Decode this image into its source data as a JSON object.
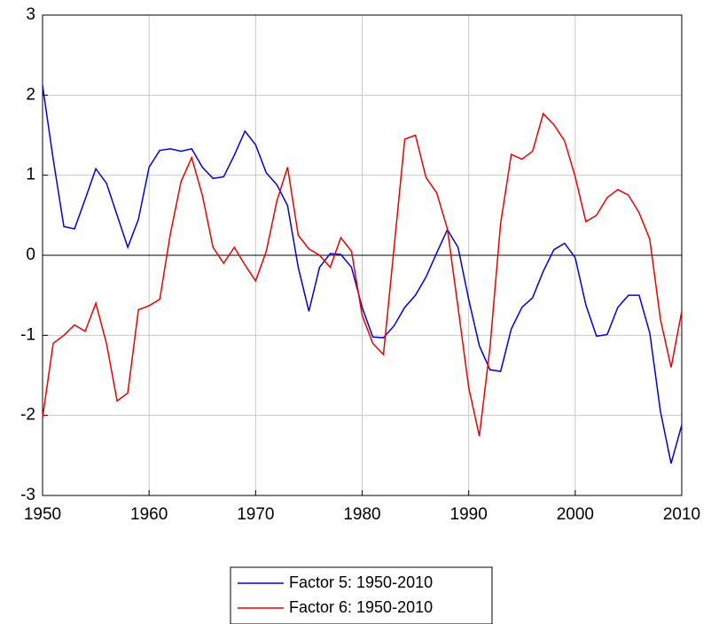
{
  "chart_data": {
    "type": "line",
    "x": [
      1950,
      1951,
      1952,
      1953,
      1954,
      1955,
      1956,
      1957,
      1958,
      1959,
      1960,
      1961,
      1962,
      1963,
      1964,
      1965,
      1966,
      1967,
      1968,
      1969,
      1970,
      1971,
      1972,
      1973,
      1974,
      1975,
      1976,
      1977,
      1978,
      1979,
      1980,
      1981,
      1982,
      1983,
      1984,
      1985,
      1986,
      1987,
      1988,
      1989,
      1990,
      1991,
      1992,
      1993,
      1994,
      1995,
      1996,
      1997,
      1998,
      1999,
      2000,
      2001,
      2002,
      2003,
      2004,
      2005,
      2006,
      2007,
      2008,
      2009,
      2010
    ],
    "series": [
      {
        "name": "Factor 5: 1950-2010",
        "color": "#0000dd",
        "values": [
          2.12,
          1.2,
          0.36,
          0.33,
          0.7,
          1.08,
          0.9,
          0.5,
          0.1,
          0.45,
          1.1,
          1.31,
          1.33,
          1.3,
          1.33,
          1.1,
          0.96,
          0.98,
          1.25,
          1.55,
          1.38,
          1.03,
          0.88,
          0.62,
          -0.15,
          -0.7,
          -0.15,
          0.02,
          0.01,
          -0.15,
          -0.65,
          -1.02,
          -1.03,
          -0.88,
          -0.65,
          -0.5,
          -0.27,
          0.03,
          0.32,
          0.1,
          -0.55,
          -1.13,
          -1.43,
          -1.45,
          -0.92,
          -0.65,
          -0.53,
          -0.2,
          0.07,
          0.15,
          -0.03,
          -0.62,
          -1.01,
          -0.99,
          -0.65,
          -0.5,
          -0.5,
          -0.97,
          -1.95,
          -2.6,
          -2.12
        ]
      },
      {
        "name": "Factor 6: 1950-2010",
        "color": "#ee0000",
        "values": [
          -2.03,
          -1.1,
          -1.0,
          -0.87,
          -0.95,
          -0.6,
          -1.1,
          -1.82,
          -1.72,
          -0.68,
          -0.63,
          -0.55,
          0.27,
          0.92,
          1.22,
          0.75,
          0.1,
          -0.1,
          0.1,
          -0.12,
          -0.32,
          0.05,
          0.68,
          1.1,
          0.25,
          0.08,
          0.0,
          -0.15,
          0.22,
          0.05,
          -0.75,
          -1.1,
          -1.24,
          0.1,
          1.45,
          1.5,
          0.97,
          0.78,
          0.33,
          -0.65,
          -1.65,
          -2.26,
          -1.15,
          0.4,
          1.26,
          1.2,
          1.3,
          1.77,
          1.63,
          1.43,
          0.98,
          0.42,
          0.5,
          0.72,
          0.82,
          0.75,
          0.53,
          0.2,
          -0.8,
          -1.4,
          -0.7
        ]
      }
    ],
    "xlim": [
      1950,
      2010
    ],
    "xticks": [
      1950,
      1960,
      1970,
      1980,
      1990,
      2000,
      2010
    ],
    "ylim": [
      -3,
      3
    ],
    "yticks": [
      -3,
      -2,
      -1,
      0,
      1,
      2,
      3
    ],
    "grid": true,
    "legend": "bottom"
  }
}
